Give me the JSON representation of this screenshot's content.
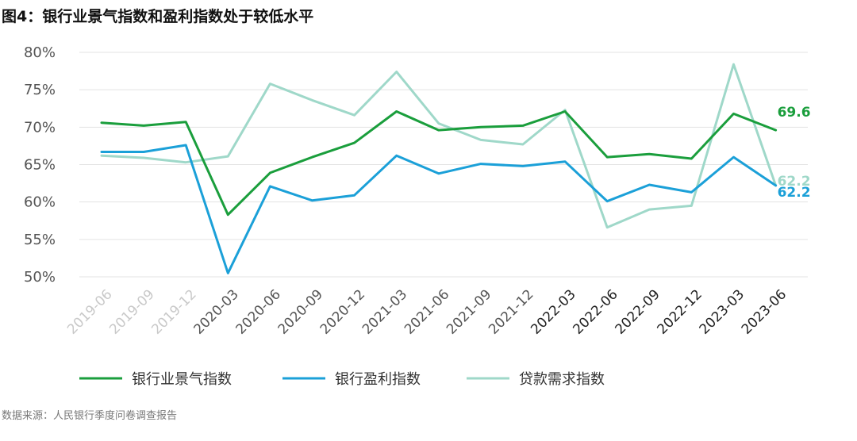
{
  "title": "图4：银行业景气指数和盈利指数处于较低水平",
  "source": "数据来源：人民银行季度问卷调查报告",
  "chart_data": {
    "type": "line",
    "title": "图4：银行业景气指数和盈利指数处于较低水平",
    "xlabel": "",
    "ylabel": "",
    "ylim": [
      50,
      80
    ],
    "yticks": [
      "80%",
      "75%",
      "70%",
      "65%",
      "60%",
      "55%",
      "50%"
    ],
    "ytick_values": [
      80,
      75,
      70,
      65,
      60,
      55,
      50
    ],
    "categories": [
      "2019-06",
      "2019-09",
      "2019-12",
      "2020-03",
      "2020-06",
      "2020-09",
      "2020-12",
      "2021-03",
      "2021-06",
      "2021-09",
      "2021-12",
      "2022-03",
      "2022-06",
      "2022-09",
      "2022-12",
      "2023-03",
      "2023-06"
    ],
    "category_colors": [
      "#c9c9c9",
      "#c9c9c9",
      "#c9c9c9",
      "#555555",
      "#555555",
      "#555555",
      "#555555",
      "#555555",
      "#555555",
      "#555555",
      "#555555",
      "#222222",
      "#222222",
      "#222222",
      "#222222",
      "#222222",
      "#222222"
    ],
    "grid": true,
    "legend_position": "bottom",
    "series": [
      {
        "name": "银行业景气指数",
        "color": "#1a9e3c",
        "values": [
          70.6,
          70.2,
          70.7,
          58.3,
          63.9,
          66.0,
          67.9,
          72.1,
          69.6,
          70.0,
          70.2,
          72.1,
          66.0,
          66.4,
          65.8,
          71.8,
          69.6
        ],
        "end_label": "69.6"
      },
      {
        "name": "银行盈利指数",
        "color": "#1ba0d8",
        "values": [
          66.7,
          66.7,
          67.6,
          50.5,
          62.1,
          60.2,
          60.9,
          66.2,
          63.8,
          65.1,
          64.8,
          65.4,
          60.1,
          62.3,
          61.3,
          66.0,
          62.2
        ],
        "end_label": "62.2"
      },
      {
        "name": "贷款需求指数",
        "color": "#9fd8c9",
        "values": [
          66.2,
          65.9,
          65.3,
          66.1,
          75.8,
          73.6,
          71.6,
          77.4,
          70.5,
          68.3,
          67.7,
          72.3,
          56.6,
          59.0,
          59.5,
          78.4,
          62.2
        ],
        "end_label": "62.2"
      }
    ]
  }
}
